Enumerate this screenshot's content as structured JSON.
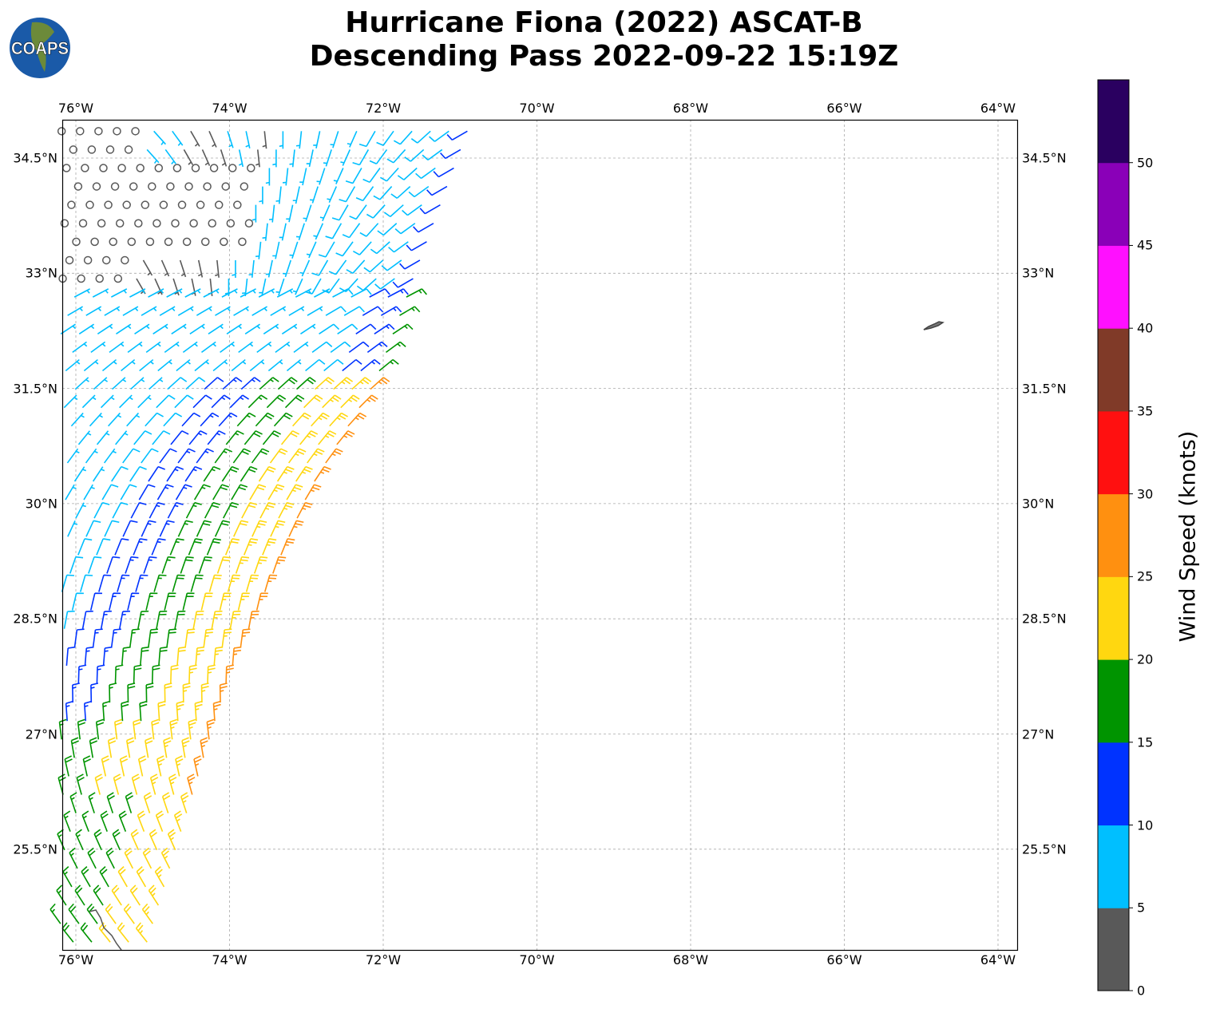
{
  "title": {
    "line1": "Hurricane Fiona (2022) ASCAT-B",
    "line2": "Descending Pass 2022-09-22 15:19Z"
  },
  "logo_text": "COAPS",
  "lon_ticks": [
    "76°W",
    "74°W",
    "72°W",
    "70°W",
    "68°W",
    "66°W",
    "64°W"
  ],
  "lat_ticks": [
    "34.5°N",
    "33°N",
    "31.5°N",
    "30°N",
    "28.5°N",
    "27°N",
    "25.5°N"
  ],
  "colorbar": {
    "label": "Wind Speed (knots)",
    "ticks": [
      "0",
      "5",
      "10",
      "15",
      "20",
      "25",
      "30",
      "35",
      "40",
      "45",
      "50"
    ],
    "colors": [
      "#595959",
      "#00bfff",
      "#0033ff",
      "#009400",
      "#ffd710",
      "#ff9010",
      "#ff1010",
      "#803a28",
      "#ff10ff",
      "#8a00b8",
      "#2a0060"
    ]
  },
  "chart_data": {
    "type": "map",
    "variable": "wind barbs (knots)",
    "lon_range": [
      -76.18,
      -63.75
    ],
    "lat_range": [
      24.19,
      35.0
    ],
    "bins_knots": [
      0,
      5,
      10,
      15,
      20,
      25,
      30,
      35,
      40,
      45,
      50,
      55
    ]
  }
}
